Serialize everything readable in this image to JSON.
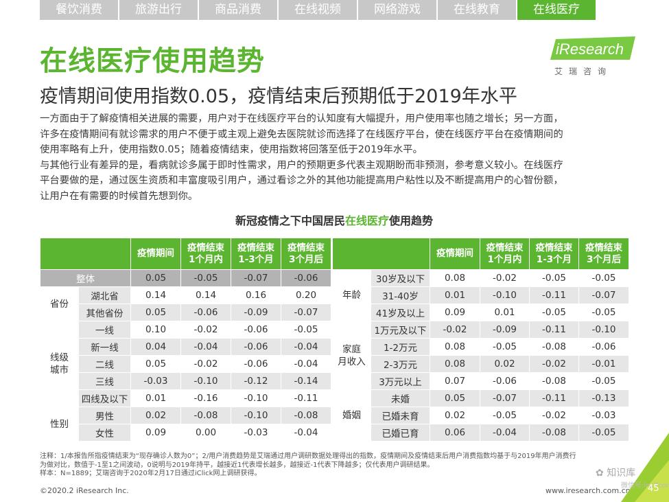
{
  "tabs": [
    "餐饮消费",
    "旅游出行",
    "商品消费",
    "在线视频",
    "网络游戏",
    "在线教育",
    "在线医疗"
  ],
  "active_tab": 6,
  "title": "在线医疗使用趋势",
  "logo": {
    "text": "iResearch",
    "sub": "艾瑞咨询"
  },
  "subtitle": "疫情期间使用指数0.05，疫情结束后预期低于2019年水平",
  "body": [
    "一方面由于了解疫情相关进展的需要，用户对于在线医疗平台的认知度有大幅提升，用户使用率也随之增长；另一方面，",
    "许多在疫情期间有就诊需求的用户不便于或主观上避免去医院就诊而选择了在线医疗平台，使在线医疗平台在疫情期间的",
    "使用率略有上升，使用指数0.05；随着疫情结束，使用指数将回落至低于2019年水平。",
    "与其他行业有差异的是，看病就诊多属于即时性需求，用户的预期更多代表主观期盼而非预测，参考意义较小。在线医疗",
    "平台要做的是，通过医生资质和丰富度吸引用户，通过看诊之外的其他功能提高用户粘性以及不断提高用户的心智份额，",
    "让用户在有需要的时候首先想到你。"
  ],
  "table_title": {
    "pre": "新冠疫情之下中国居民",
    "hl": "在线医疗",
    "post": "使用趋势"
  },
  "headers": [
    "疫情期间",
    "疫情结束\n1个月内",
    "疫情结束\n1-3个月",
    "疫情结束\n3个月后"
  ],
  "left_table": {
    "overall": {
      "label": "整体",
      "values": [
        "0.05",
        "-0.05",
        "-0.07",
        "-0.06"
      ]
    },
    "groups": [
      {
        "name": "省份",
        "rows": [
          {
            "label": "湖北省",
            "values": [
              "0.14",
              "0.14",
              "0.16",
              "0.20"
            ]
          },
          {
            "label": "其他省份",
            "values": [
              "0.05",
              "-0.06",
              "-0.09",
              "-0.07"
            ]
          }
        ]
      },
      {
        "name": "线级\n城市",
        "rows": [
          {
            "label": "一线",
            "values": [
              "0.10",
              "-0.02",
              "-0.06",
              "-0.05"
            ]
          },
          {
            "label": "新一线",
            "values": [
              "0.04",
              "-0.04",
              "-0.06",
              "-0.04"
            ]
          },
          {
            "label": "二线",
            "values": [
              "0.05",
              "-0.02",
              "-0.06",
              "-0.04"
            ]
          },
          {
            "label": "三线",
            "values": [
              "-0.03",
              "-0.10",
              "-0.12",
              "-0.14"
            ]
          },
          {
            "label": "四线及以下",
            "values": [
              "0.01",
              "-0.16",
              "-0.10",
              "-0.11"
            ]
          }
        ]
      },
      {
        "name": "性别",
        "rows": [
          {
            "label": "男性",
            "values": [
              "0.02",
              "-0.08",
              "-0.10",
              "-0.08"
            ]
          },
          {
            "label": "女性",
            "values": [
              "0.09",
              "0.00",
              "-0.03",
              "-0.04"
            ]
          }
        ]
      }
    ]
  },
  "right_table": {
    "groups": [
      {
        "name": "年龄",
        "rows": [
          {
            "label": "30岁及以下",
            "values": [
              "0.08",
              "-0.02",
              "-0.05",
              "-0.05"
            ]
          },
          {
            "label": "31-40岁",
            "values": [
              "0.01",
              "-0.10",
              "-0.11",
              "-0.07"
            ]
          },
          {
            "label": "41岁及以上",
            "values": [
              "0.09",
              "0.01",
              "-0.05",
              "-0.05"
            ]
          }
        ]
      },
      {
        "name": "家庭\n月收入",
        "rows": [
          {
            "label": "1万元及以下",
            "values": [
              "-0.02",
              "-0.09",
              "-0.11",
              "-0.10"
            ]
          },
          {
            "label": "1-2万元",
            "values": [
              "0.08",
              "-0.05",
              "-0.08",
              "-0.06"
            ]
          },
          {
            "label": "2-3万元",
            "values": [
              "0.08",
              "0.02",
              "-0.02",
              "-0.01"
            ]
          },
          {
            "label": "3万元以上",
            "values": [
              "0.07",
              "-0.06",
              "-0.08",
              "-0.05"
            ]
          }
        ]
      },
      {
        "name": "婚姻",
        "rows": [
          {
            "label": "未婚",
            "values": [
              "0.05",
              "-0.07",
              "-0.11",
              "-0.13"
            ]
          },
          {
            "label": "已婚未育",
            "values": [
              "0.02",
              "-0.05",
              "-0.02",
              "-0.03"
            ]
          },
          {
            "label": "已婚已育",
            "values": [
              "0.06",
              "-0.04",
              "-0.08",
              "-0.05"
            ]
          }
        ]
      }
    ]
  },
  "notes": [
    "注释：1/本报告所指疫情结束为“现存确诊人数为0”；2/用户消费趋势是艾瑞通过用户调研数据处理得出的指数，疫情期间及疫情结束后用户消费指数均基于与2019年用户消费行",
    "为做对比，数值于-1至1之间波动，0说明与2019年持平，越接近1代表增长越多，越接近-1代表下降越多；仅代表用户调研结果。",
    "样本：N=1889；艾瑞咨询于2020年2月17日通过iClick网上调研获得。"
  ],
  "footer": {
    "copyright": "©2020.2 iResearch Inc.",
    "url": "www.iresearch.com.cn",
    "page": "45"
  },
  "watermark": {
    "name": "知识库",
    "sub": "微信号:lnsifcom.cn"
  },
  "colors": {
    "accent": "#5cb531",
    "header_bg": "#5cb531",
    "shade": "#e6e6e6",
    "overall_row": "#b3b3b3"
  }
}
